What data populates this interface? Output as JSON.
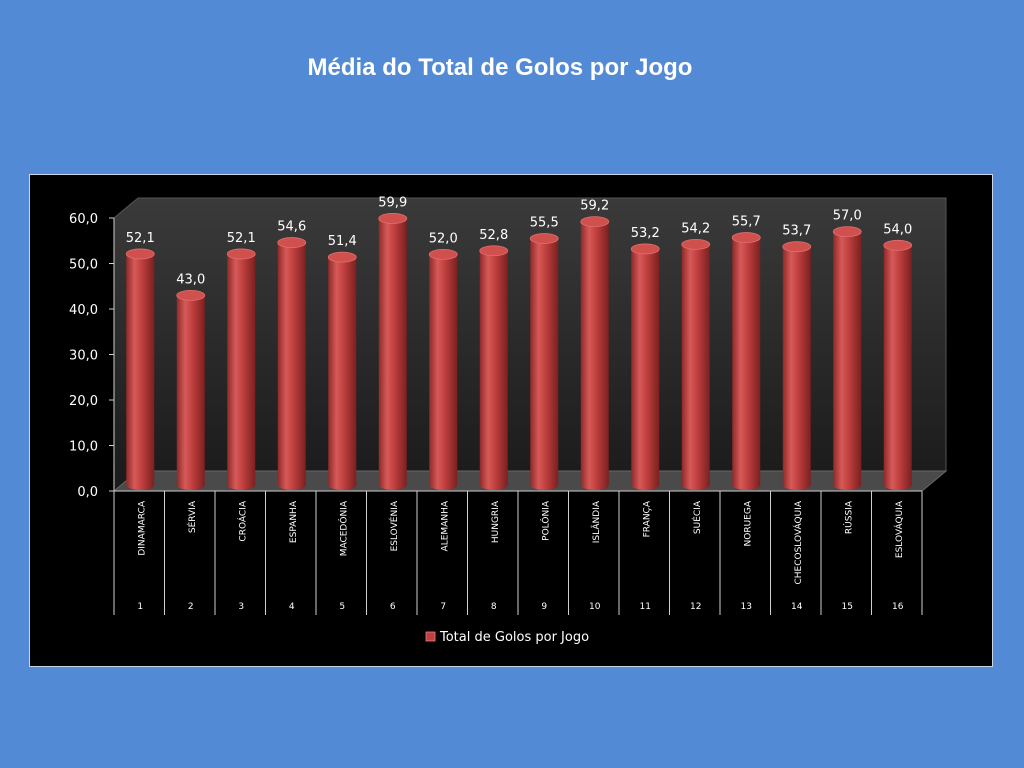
{
  "slide": {
    "title": "Média do Total de Golos por Jogo"
  },
  "colors": {
    "background": "#538ad6",
    "chart_background": "#000000",
    "bar": "#c0403f",
    "text": "#ffffff"
  },
  "chart_data": {
    "type": "bar",
    "style": "3d-cylinder",
    "title": "",
    "xlabel": "",
    "ylabel": "",
    "ylim": [
      0,
      60
    ],
    "yticks": [
      "0,0",
      "10,0",
      "20,0",
      "30,0",
      "40,0",
      "50,0",
      "60,0"
    ],
    "grid": false,
    "legend_position": "bottom",
    "categories": [
      "DINAMARCA",
      "SÉRVIA",
      "CROÁCIA",
      "ESPANHA",
      "MACEDÓNIA",
      "ESLOVÉNIA",
      "ALEMANHA",
      "HUNGRIA",
      "POLÓNIA",
      "ISLÂNDIA",
      "FRANÇA",
      "SUÉCIA",
      "NORUEGA",
      "CHECOSLOVÁQUIA",
      "RÚSSIA",
      "ESLOVÁQUIA"
    ],
    "numbers": [
      "1",
      "2",
      "3",
      "4",
      "5",
      "6",
      "7",
      "8",
      "9",
      "10",
      "11",
      "12",
      "13",
      "14",
      "15",
      "16"
    ],
    "series": [
      {
        "name": "Total de Golos por Jogo",
        "values": [
          52.1,
          43.0,
          52.1,
          54.6,
          51.4,
          59.9,
          52.0,
          52.8,
          55.5,
          59.2,
          53.2,
          54.2,
          55.7,
          53.7,
          57.0,
          54.0
        ],
        "labels": [
          "52,1",
          "43,0",
          "52,1",
          "54,6",
          "51,4",
          "59,9",
          "52,0",
          "52,8",
          "55,5",
          "59,2",
          "53,2",
          "54,2",
          "55,7",
          "53,7",
          "57,0",
          "54,0"
        ]
      }
    ]
  }
}
